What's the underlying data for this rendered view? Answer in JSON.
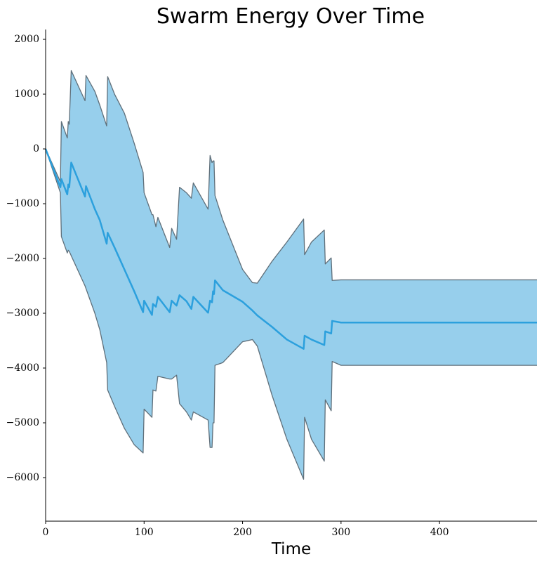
{
  "chart_data": {
    "type": "band-line",
    "title": "Swarm Energy Over Time",
    "x_label": "Time",
    "x": [
      0,
      15,
      16,
      22,
      23,
      24,
      26,
      40,
      41,
      50,
      55,
      62,
      63,
      70,
      80,
      90,
      99,
      100,
      108,
      109,
      112,
      114,
      126,
      128,
      133,
      136,
      143,
      148,
      150,
      165,
      167,
      169,
      170,
      171,
      172,
      180,
      200,
      210,
      215,
      230,
      245,
      262,
      263,
      270,
      283,
      284,
      290,
      291,
      300,
      499
    ],
    "values": [
      0,
      -700,
      -550,
      -830,
      -650,
      -700,
      -250,
      -870,
      -680,
      -1100,
      -1300,
      -1730,
      -1530,
      -1800,
      -2200,
      -2600,
      -2980,
      -2770,
      -3030,
      -2830,
      -2880,
      -2700,
      -2980,
      -2770,
      -2860,
      -2670,
      -2780,
      -2920,
      -2700,
      -2990,
      -2770,
      -2800,
      -2600,
      -2650,
      -2400,
      -2580,
      -2790,
      -2950,
      -3040,
      -3250,
      -3480,
      -3650,
      -3410,
      -3480,
      -3580,
      -3330,
      -3370,
      -3140,
      -3170,
      -3170
    ],
    "lower": [
      0,
      -800,
      -1600,
      -1900,
      -1850,
      -1870,
      -1950,
      -2500,
      -2550,
      -3000,
      -3300,
      -3900,
      -4400,
      -4700,
      -5100,
      -5400,
      -5550,
      -4750,
      -4900,
      -4400,
      -4420,
      -4150,
      -4200,
      -4200,
      -4130,
      -4650,
      -4800,
      -4950,
      -4800,
      -4950,
      -5450,
      -5450,
      -5000,
      -5000,
      -3950,
      -3900,
      -3520,
      -3480,
      -3600,
      -4500,
      -5300,
      -6030,
      -4900,
      -5300,
      -5700,
      -4580,
      -4780,
      -3880,
      -3950,
      -3950
    ],
    "upper": [
      0,
      -600,
      500,
      200,
      500,
      450,
      1430,
      880,
      1340,
      1050,
      800,
      420,
      1320,
      1000,
      650,
      100,
      -430,
      -800,
      -1200,
      -1200,
      -1420,
      -1250,
      -1800,
      -1450,
      -1650,
      -700,
      -800,
      -900,
      -620,
      -1100,
      -120,
      -250,
      -220,
      -220,
      -850,
      -1300,
      -2200,
      -2440,
      -2450,
      -2050,
      -1700,
      -1280,
      -1930,
      -1700,
      -1480,
      -2100,
      -1990,
      -2400,
      -2390,
      -2390
    ],
    "line_color": "#2ca0dd",
    "fill_color": "#97cfec",
    "edge_color": "#5f6f7a",
    "xlim": [
      0,
      499
    ],
    "ylim": [
      -6795,
      2180
    ],
    "xticks": [
      0,
      100,
      200,
      300,
      400
    ],
    "yticks": [
      {
        "value": -6000,
        "label": "−6000"
      },
      {
        "value": -5000,
        "label": "−5000"
      },
      {
        "value": -4000,
        "label": "−4000"
      },
      {
        "value": -3000,
        "label": "−3000"
      },
      {
        "value": -2000,
        "label": "−2000"
      },
      {
        "value": -1000,
        "label": "−1000"
      },
      0,
      1000,
      2000
    ]
  }
}
